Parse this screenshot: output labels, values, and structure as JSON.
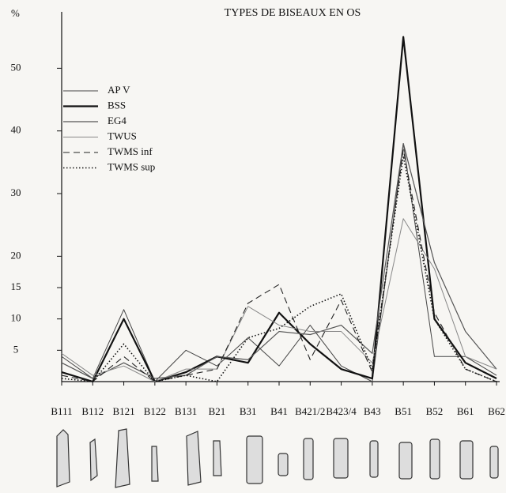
{
  "chart_data": {
    "type": "line",
    "title": "TYPES DE BISEAUX EN OS",
    "y_label": "%",
    "categories": [
      "B111",
      "B112",
      "B121",
      "B122",
      "B131",
      "B21",
      "B31",
      "B41",
      "B421/2",
      "B423/4",
      "B43",
      "B51",
      "B52",
      "B61",
      "B62"
    ],
    "ylim": [
      0,
      59
    ],
    "yticks": [
      5,
      10,
      15,
      20,
      30,
      40,
      50
    ],
    "series": [
      {
        "name": "AP V",
        "color": "#444",
        "width": 1,
        "dash": "none",
        "values": [
          4,
          0.5,
          11.5,
          0,
          5,
          2.5,
          7,
          2.5,
          9,
          2.5,
          0,
          38,
          4,
          4,
          1
        ]
      },
      {
        "name": "BSS",
        "color": "#111",
        "width": 2.2,
        "dash": "none",
        "values": [
          1.5,
          0,
          10,
          0,
          1.5,
          4,
          3,
          11,
          6,
          2,
          0.5,
          55,
          10,
          3,
          0.5
        ]
      },
      {
        "name": "EG4",
        "color": "#555",
        "width": 1.2,
        "dash": "none",
        "values": [
          3,
          0.5,
          3,
          0.5,
          1,
          4,
          3.5,
          8,
          7.5,
          9,
          4.5,
          38,
          19,
          8,
          2
        ]
      },
      {
        "name": "TWUS",
        "color": "#888",
        "width": 1,
        "dash": "none",
        "values": [
          4.5,
          1,
          2.5,
          0,
          2,
          2,
          12,
          9,
          8,
          8,
          3,
          26,
          18,
          4,
          2
        ]
      },
      {
        "name": "TWMS inf",
        "color": "#222",
        "width": 1.1,
        "dash": "8,5",
        "values": [
          1,
          0,
          4,
          0,
          1,
          2,
          12.5,
          15.5,
          3.5,
          13,
          1.5,
          37,
          11,
          2,
          0
        ]
      },
      {
        "name": "TWMS sup",
        "color": "#111",
        "width": 1.6,
        "dash": "1.5,2.5",
        "values": [
          0.5,
          0,
          6,
          0,
          1,
          0,
          7,
          8.5,
          12,
          14,
          2,
          36,
          10,
          2,
          0
        ]
      }
    ]
  }
}
